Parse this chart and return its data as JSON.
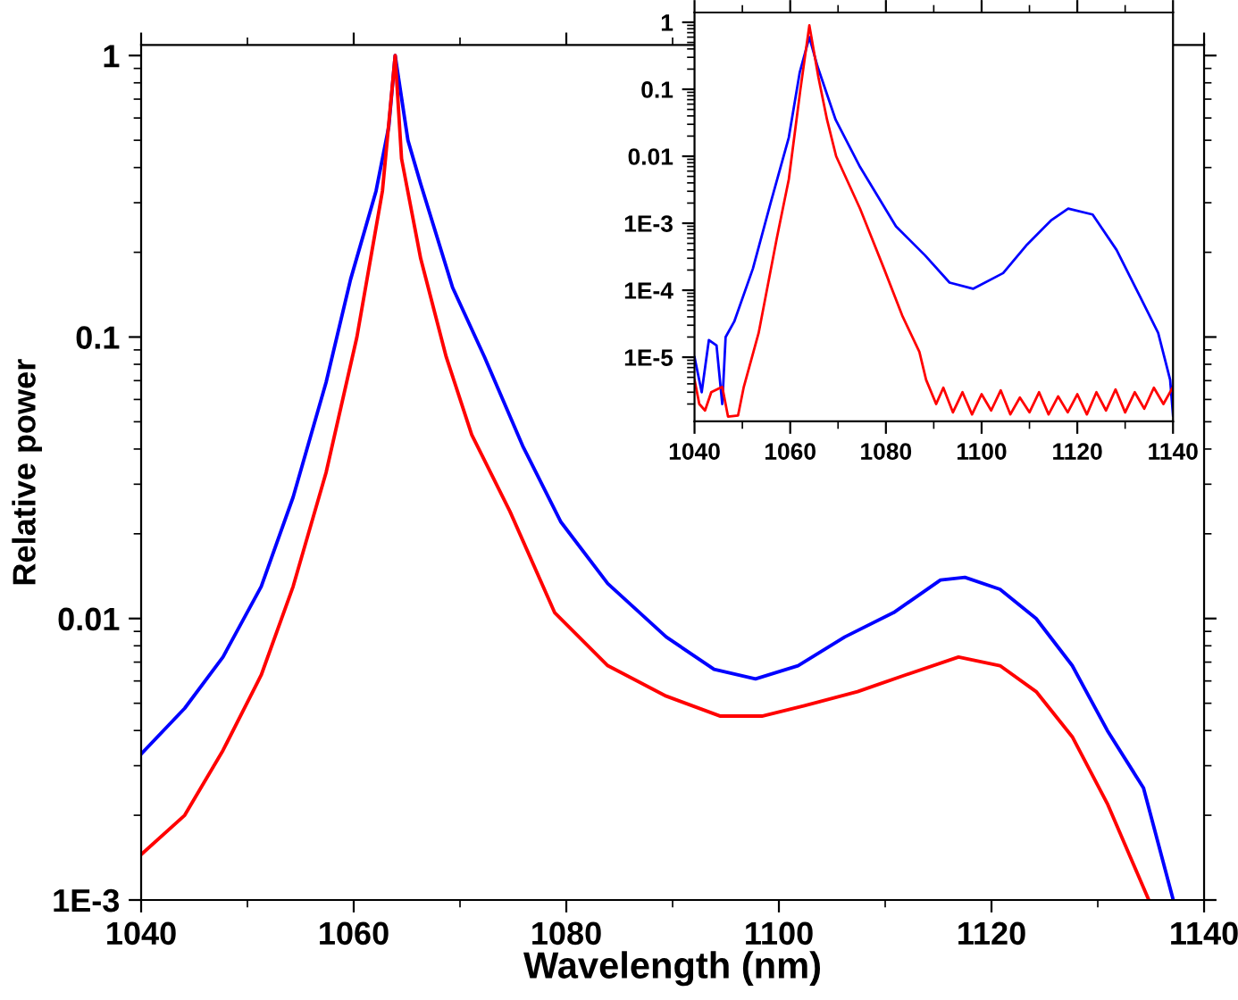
{
  "chart_data": [
    {
      "type": "line",
      "xlabel": "Wavelength (nm)",
      "ylabel": "Relative power",
      "log": "y",
      "xlim": [
        1040,
        1140
      ],
      "xticks": [
        1040,
        1060,
        1080,
        1100,
        1120,
        1140
      ],
      "ylim": [
        0.001,
        1.09
      ],
      "yticks": [
        1,
        0.1,
        0.01,
        {
          "value": 0.001,
          "label": "1E-3"
        }
      ],
      "series": [
        {
          "color": "#0000ff",
          "x": [
            1040,
            1044.1,
            1047.7,
            1051.3,
            1054.3,
            1057.4,
            1059.7,
            1062.1,
            1063.3,
            1063.9,
            1065.1,
            1066.3,
            1069.3,
            1072.3,
            1075.9,
            1079.5,
            1083.9,
            1089.4,
            1093.9,
            1097.8,
            1101.8,
            1106.2,
            1110.8,
            1115.2,
            1117.5,
            1120.8,
            1124.2,
            1127.6,
            1130.9,
            1134.3,
            1137.1
          ],
          "values": [
            0.0033,
            0.0048,
            0.0073,
            0.013,
            0.027,
            0.069,
            0.16,
            0.33,
            0.56,
            1.0,
            0.5,
            0.35,
            0.15,
            0.085,
            0.041,
            0.022,
            0.0133,
            0.0086,
            0.0066,
            0.0061,
            0.0068,
            0.0086,
            0.0105,
            0.0137,
            0.014,
            0.0127,
            0.01,
            0.0068,
            0.004,
            0.0025,
            0.001
          ]
        },
        {
          "color": "#ff0000",
          "x": [
            1040,
            1044.1,
            1047.7,
            1051.3,
            1054.3,
            1057.4,
            1060.3,
            1062.7,
            1063.9,
            1064.5,
            1066.3,
            1068.7,
            1071.1,
            1074.7,
            1078.9,
            1083.9,
            1089.4,
            1094.5,
            1098.4,
            1102.4,
            1107.4,
            1111.9,
            1116.9,
            1120.8,
            1124.2,
            1127.6,
            1130.9,
            1134.8
          ],
          "values": [
            0.00145,
            0.002,
            0.0034,
            0.0063,
            0.013,
            0.033,
            0.1,
            0.33,
            1.0,
            0.43,
            0.19,
            0.085,
            0.045,
            0.024,
            0.0105,
            0.0068,
            0.0053,
            0.0045,
            0.0045,
            0.0049,
            0.0055,
            0.0063,
            0.0073,
            0.0068,
            0.0055,
            0.0038,
            0.0022,
            0.001
          ]
        }
      ]
    },
    {
      "type": "line",
      "log": "y",
      "xlim": [
        1040,
        1140
      ],
      "xticks": [
        1040,
        1060,
        1080,
        1100,
        1120,
        1140
      ],
      "ylim": [
        1.1e-06,
        1.4
      ],
      "yticks": [
        1,
        0.1,
        0.01,
        {
          "value": 0.001,
          "label": "1E-3"
        },
        {
          "value": 0.0001,
          "label": "1E-4"
        },
        {
          "value": 1e-05,
          "label": "1E-5"
        }
      ],
      "series": [
        {
          "color": "#0000ff",
          "x": [
            1040,
            1041.5,
            1043,
            1044.6,
            1045.8,
            1046.5,
            1048.3,
            1052.2,
            1055.9,
            1059.7,
            1062,
            1064,
            1065.7,
            1069.5,
            1074.6,
            1082.1,
            1088.2,
            1093.3,
            1098.2,
            1104.5,
            1109.5,
            1114.5,
            1118.1,
            1123.2,
            1128.2,
            1133.2,
            1136.9,
            1138.2,
            1139.4,
            1140
          ],
          "values": [
            1e-05,
            3e-06,
            1.8e-05,
            1.5e-05,
            2e-06,
            2e-05,
            3.4e-05,
            0.00021,
            0.002,
            0.019,
            0.18,
            0.6,
            0.22,
            0.035,
            0.0069,
            0.0009,
            0.00033,
            0.00013,
            0.000105,
            0.00018,
            0.00048,
            0.0011,
            0.00165,
            0.00135,
            0.0004,
            7.8e-05,
            2.3e-05,
            1e-05,
            4.6e-06,
            1.35e-06
          ]
        },
        {
          "color": "#ff0000",
          "x": [
            1040,
            1041,
            1042.2,
            1043.5,
            1045.8,
            1047,
            1049.1,
            1050.3,
            1053.4,
            1057.2,
            1059.7,
            1062.1,
            1064,
            1065.9,
            1067.7,
            1069.6,
            1074.6,
            1079.6,
            1083.4,
            1087,
            1088.4,
            1090.5,
            1092,
            1094,
            1096,
            1098,
            1100,
            1102,
            1104,
            1106,
            1108,
            1110,
            1112,
            1114,
            1116,
            1118,
            1120,
            1122,
            1124,
            1126,
            1128,
            1130,
            1132,
            1134,
            1136,
            1138,
            1140
          ],
          "values": [
            4.6e-06,
            2e-06,
            1.6e-06,
            3e-06,
            3.6e-06,
            1.3e-06,
            1.35e-06,
            3.6e-06,
            2.3e-05,
            0.0006,
            0.0045,
            0.096,
            0.9,
            0.15,
            0.035,
            0.01,
            0.00165,
            0.00021,
            4.2e-05,
            1.2e-05,
            4.6e-06,
            2e-06,
            3.5e-06,
            1.5e-06,
            3e-06,
            1.4e-06,
            2.8e-06,
            1.6e-06,
            3.2e-06,
            1.4e-06,
            2.5e-06,
            1.5e-06,
            3e-06,
            1.4e-06,
            2.6e-06,
            1.5e-06,
            2.8e-06,
            1.4e-06,
            3e-06,
            1.6e-06,
            3.3e-06,
            1.5e-06,
            3e-06,
            1.7e-06,
            3.5e-06,
            2e-06,
            3.6e-06
          ]
        }
      ]
    }
  ]
}
